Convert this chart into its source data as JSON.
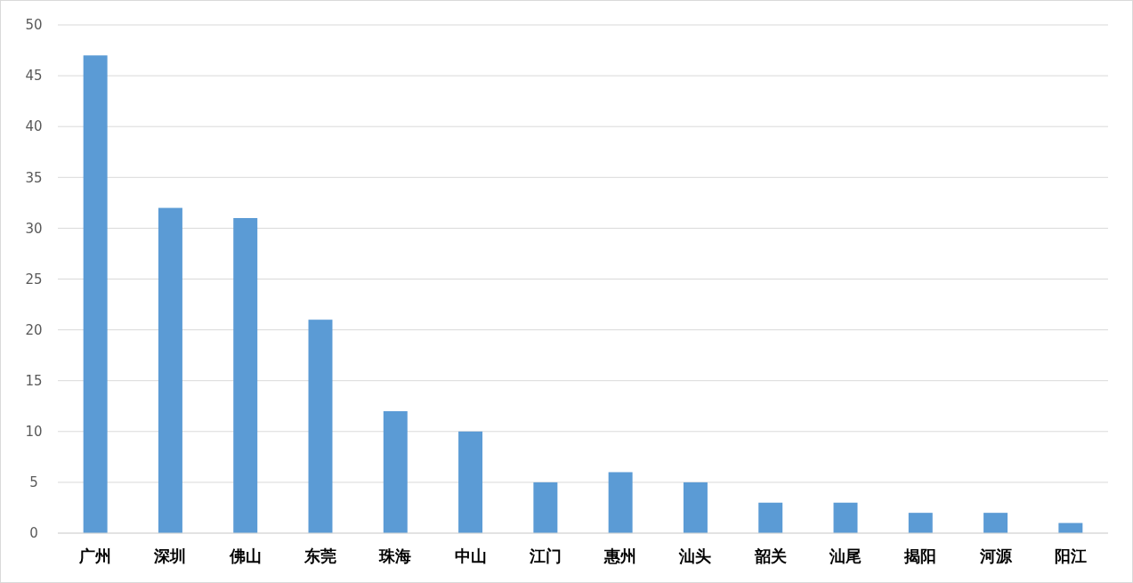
{
  "chart_data": {
    "type": "bar",
    "categories": [
      "广州",
      "深圳",
      "佛山",
      "东莞",
      "珠海",
      "中山",
      "江门",
      "惠州",
      "汕头",
      "韶关",
      "汕尾",
      "揭阳",
      "河源",
      "阳江"
    ],
    "values": [
      47,
      32,
      31,
      21,
      12,
      10,
      5,
      6,
      5,
      3,
      3,
      2,
      2,
      1
    ],
    "color": "#5b9bd5",
    "ylim": [
      0,
      50
    ],
    "yticks": [
      0,
      5,
      10,
      15,
      20,
      25,
      30,
      35,
      40,
      45,
      50
    ],
    "grid": "y"
  }
}
